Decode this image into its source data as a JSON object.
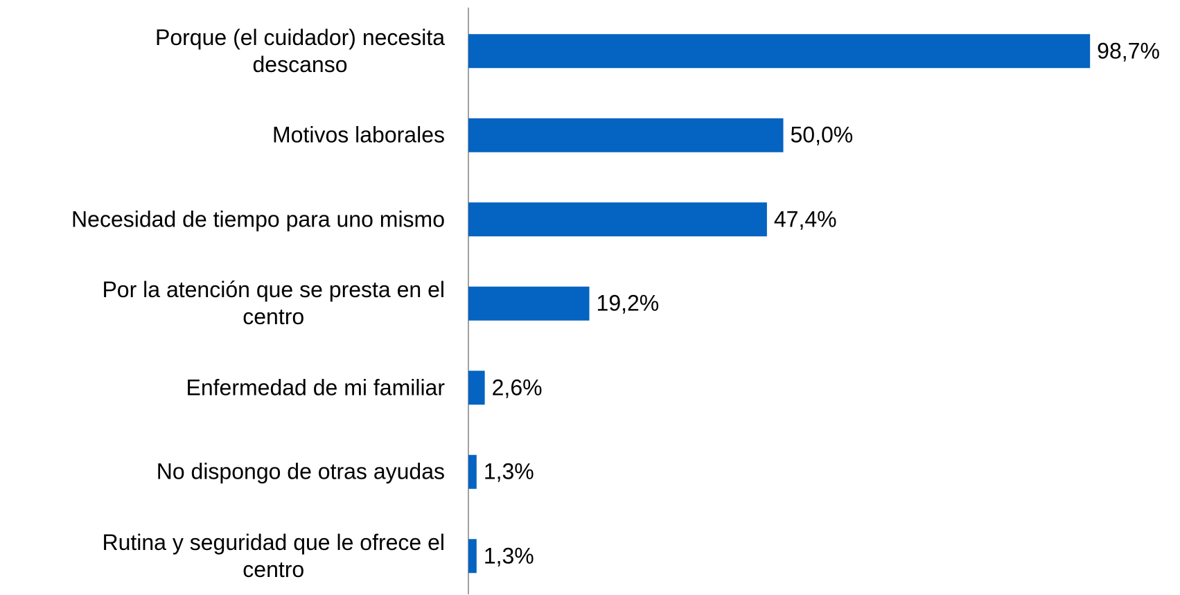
{
  "chart_data": {
    "type": "bar",
    "orientation": "horizontal",
    "categories": [
      "Porque (el cuidador) necesita\ndescanso",
      "Motivos laborales",
      "Necesidad de tiempo para uno mismo",
      "Por la atención que se presta en el\ncentro",
      "Enfermedad de mi familiar",
      "No dispongo de otras ayudas",
      "Rutina y seguridad que le ofrece el\ncentro"
    ],
    "values": [
      98.7,
      50.0,
      47.4,
      19.2,
      2.6,
      1.3,
      1.3
    ],
    "value_labels": [
      "98,7%",
      "50,0%",
      "47,4%",
      "19,2%",
      "2,6%",
      "1,3%",
      "1,3%"
    ],
    "color": "#0563c1",
    "xlim": [
      0,
      100
    ]
  }
}
